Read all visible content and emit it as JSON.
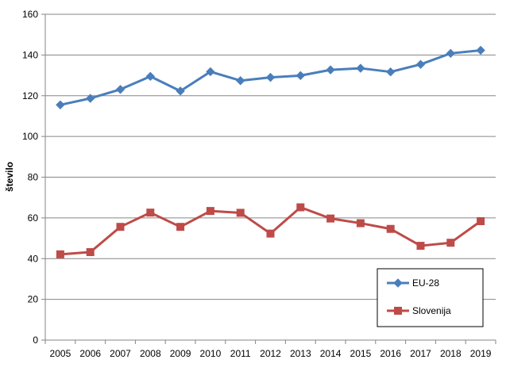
{
  "chart_data": {
    "type": "line",
    "title": "",
    "xlabel": "",
    "ylabel": "število",
    "categories": [
      "2005",
      "2006",
      "2007",
      "2008",
      "2009",
      "2010",
      "2011",
      "2012",
      "2013",
      "2014",
      "2015",
      "2016",
      "2017",
      "2018",
      "2019"
    ],
    "ylim": [
      0,
      160
    ],
    "yticks": [
      0,
      20,
      40,
      60,
      80,
      100,
      120,
      140,
      160
    ],
    "grid": "horizontal",
    "legend_position": "bottom-right",
    "series": [
      {
        "name": "EU-28",
        "color": "#4a7ebb",
        "marker": "diamond",
        "values": [
          115.5,
          118.7,
          123.1,
          129.5,
          122.3,
          131.8,
          127.4,
          129.0,
          129.9,
          132.7,
          133.5,
          131.7,
          135.4,
          140.8,
          142.3
        ]
      },
      {
        "name": "Slovenija",
        "color": "#be4b48",
        "marker": "square",
        "values": [
          42.1,
          43.2,
          55.6,
          62.6,
          55.6,
          63.4,
          62.5,
          52.3,
          65.2,
          59.7,
          57.4,
          54.6,
          46.3,
          47.8,
          58.4
        ]
      }
    ]
  }
}
